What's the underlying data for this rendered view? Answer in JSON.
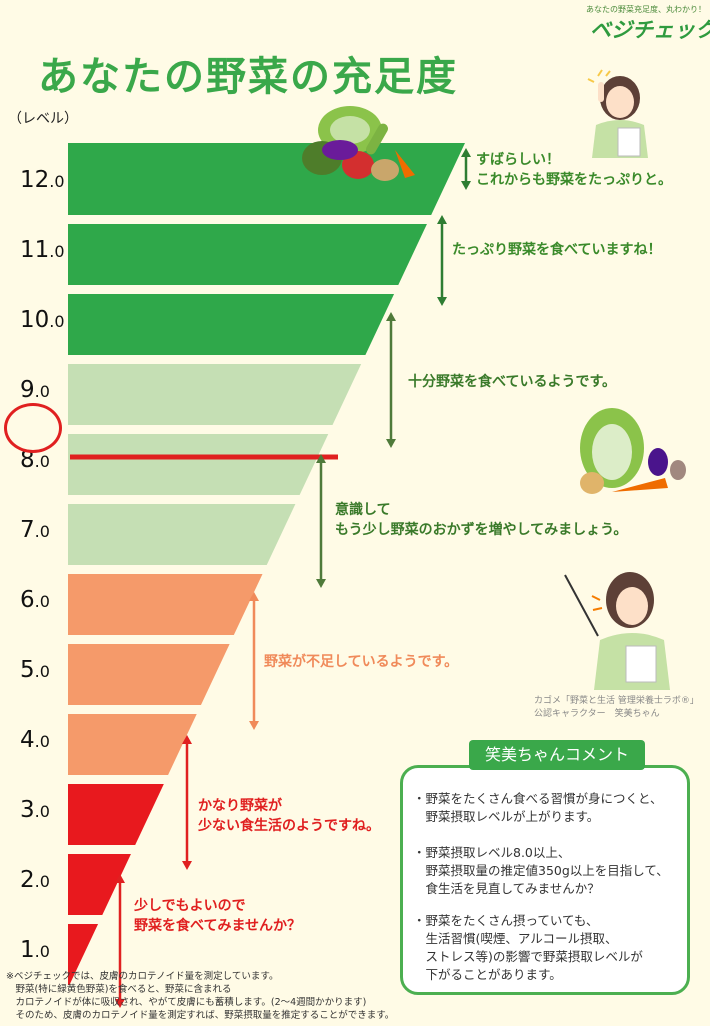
{
  "title": "あなたの野菜の充足度",
  "logo": {
    "tagline": "あなたの野菜充足度、丸わかり！",
    "name": "ベジチェック"
  },
  "unit_label": "（レベル）",
  "levels": [
    {
      "main": "12",
      "dec": ".0"
    },
    {
      "main": "11",
      "dec": ".0"
    },
    {
      "main": "10",
      "dec": ".0"
    },
    {
      "main": "9",
      "dec": ".0"
    },
    {
      "main": "8",
      "dec": ".0"
    },
    {
      "main": "7",
      "dec": ".0"
    },
    {
      "main": "6",
      "dec": ".0"
    },
    {
      "main": "5",
      "dec": ".0"
    },
    {
      "main": "4",
      "dec": ".0"
    },
    {
      "main": "3",
      "dec": ".0"
    },
    {
      "main": "2",
      "dec": ".0"
    },
    {
      "main": "1",
      "dec": ".0"
    }
  ],
  "current_level": 8.0,
  "band_colors": {
    "dark_green": "#2fa84a",
    "light_green": "#c5dfb4",
    "orange": "#f59a6a",
    "red": "#e8191e",
    "marker": "#e02020"
  },
  "messages": {
    "lv12": [
      "すばらしい！",
      "これからも野菜をたっぷりと。"
    ],
    "lv10": [
      "たっぷり野菜を食べていますね！"
    ],
    "lv8": [
      "十分野菜を食べているようです。"
    ],
    "lv6": [
      "意識して",
      "もう少し野菜のおかずを増やしてみましょう。"
    ],
    "lv4": [
      "野菜が不足しているようです。"
    ],
    "lv2": [
      "かなり野菜が",
      "少ない食生活のようですね。"
    ],
    "lv1": [
      "少しでもよいので",
      "野菜を食べてみませんか？"
    ]
  },
  "credit": [
    "カゴメ「野菜と生活 管理栄養士ラボ®」",
    "公認キャラクター　笑美ちゃん"
  ],
  "comment": {
    "title": "笑美ちゃんコメント",
    "items": [
      [
        "・野菜をたくさん食べる習慣が身につくと、",
        "　野菜摂取レベルが上がります。"
      ],
      [
        "・野菜摂取レベル8.0以上、",
        "　野菜摂取量の推定値350g以上を目指して、",
        "　食生活を見直してみませんか？"
      ],
      [
        "・野菜をたくさん摂っていても、",
        "　生活習慣(喫煙、アルコール摂取、",
        "　ストレス等)の影響で野菜摂取レベルが",
        "　下がることがあります。"
      ]
    ]
  },
  "footnote": [
    "※ベジチェックでは、皮膚のカロテノイド量を測定しています。",
    "　野菜(特に緑黄色野菜)を食べると、野菜に含まれる",
    "　カロテノイドが体に吸収され、やがて皮膚にも蓄積します。(2〜4週間かかります)",
    "　そのため、皮膚のカロテノイド量を測定すれば、野菜摂取量を推定することができます。"
  ]
}
